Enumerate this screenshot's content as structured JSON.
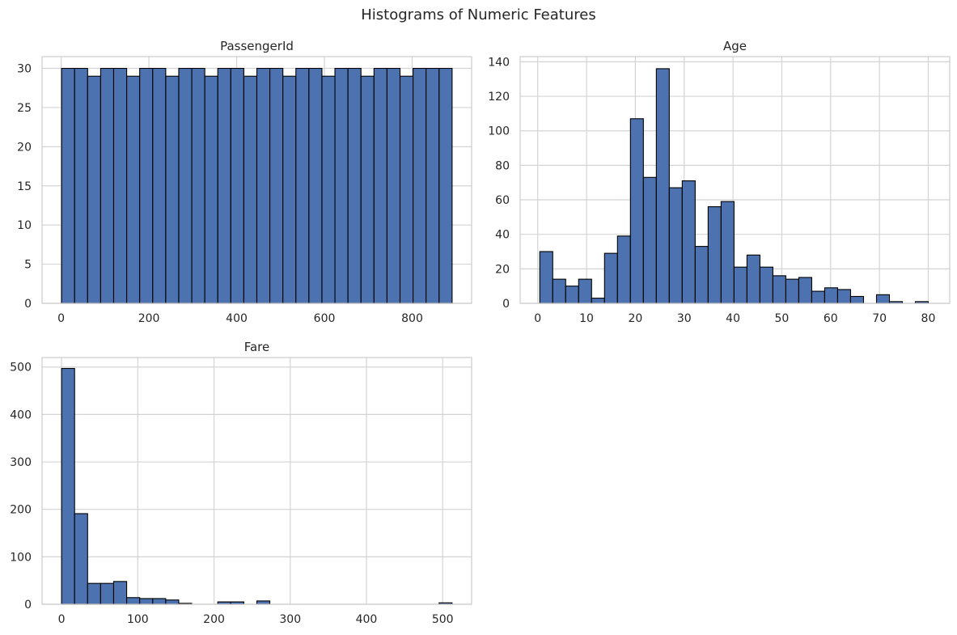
{
  "figure": {
    "title": "Histograms of Numeric Features"
  },
  "style": {
    "bar_color": "#4c72b0",
    "bar_edge": "#000000",
    "grid_color": "#d4d4d4",
    "spine_color": "#cccccc",
    "text_color": "#262626"
  },
  "chart_data": [
    {
      "type": "bar",
      "title": "PassengerId",
      "xlabel": "",
      "ylabel": "",
      "xlim": [
        -43.5,
        935.5
      ],
      "ylim": [
        0,
        31.5
      ],
      "xticks": [
        0,
        200,
        400,
        600,
        800
      ],
      "yticks": [
        0,
        5,
        10,
        15,
        20,
        25,
        30
      ],
      "grid": true,
      "bin_start": 1,
      "bin_width": 29.667,
      "values": [
        30,
        30,
        29,
        30,
        30,
        29,
        30,
        30,
        29,
        30,
        30,
        29,
        30,
        30,
        29,
        30,
        30,
        29,
        30,
        30,
        29,
        30,
        30,
        29,
        30,
        30,
        29,
        30,
        30,
        30
      ]
    },
    {
      "type": "bar",
      "title": "Age",
      "xlabel": "",
      "ylabel": "",
      "xlim": [
        -3.6,
        84.4
      ],
      "ylim": [
        0,
        143
      ],
      "xticks": [
        0,
        10,
        20,
        30,
        40,
        50,
        60,
        70,
        80
      ],
      "yticks": [
        0,
        20,
        40,
        60,
        80,
        100,
        120,
        140
      ],
      "grid": true,
      "bin_start": 0.42,
      "bin_width": 2.653,
      "values": [
        30,
        14,
        10,
        14,
        3,
        29,
        39,
        107,
        73,
        136,
        67,
        71,
        33,
        56,
        59,
        21,
        28,
        21,
        16,
        14,
        15,
        7,
        9,
        8,
        4,
        0,
        5,
        1,
        0,
        1
      ]
    },
    {
      "type": "bar",
      "title": "Fare",
      "xlabel": "",
      "ylabel": "",
      "xlim": [
        -25.6,
        538
      ],
      "ylim": [
        0,
        520
      ],
      "xticks": [
        0,
        100,
        200,
        300,
        400,
        500
      ],
      "yticks": [
        0,
        100,
        200,
        300,
        400,
        500
      ],
      "grid": true,
      "bin_start": 0,
      "bin_width": 17.0776,
      "values": [
        497,
        191,
        44,
        44,
        48,
        14,
        12,
        12,
        9,
        2,
        0,
        0,
        5,
        5,
        0,
        7,
        0,
        0,
        0,
        0,
        0,
        0,
        0,
        0,
        0,
        0,
        0,
        0,
        0,
        3
      ]
    }
  ]
}
